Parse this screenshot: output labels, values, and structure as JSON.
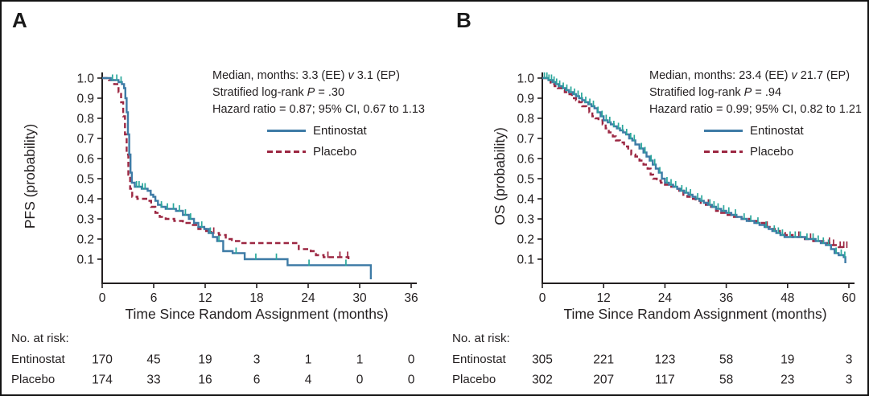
{
  "chart_data": [
    {
      "type": "line",
      "subtype": "kaplan_meier_step",
      "panel_label": "A",
      "xlabel": "Time Since Random Assignment (months)",
      "ylabel": "PFS (probability)",
      "xlim": [
        0,
        36
      ],
      "xticks": [
        0,
        6,
        12,
        18,
        24,
        30,
        36
      ],
      "ylim": [
        0,
        1.0
      ],
      "yticks": [
        0.1,
        0.2,
        0.3,
        0.4,
        0.5,
        0.6,
        0.7,
        0.8,
        0.9,
        1.0
      ],
      "grid": false,
      "legend_position": "upper right",
      "annotations": [
        "Median, months: 3.3 (EE) v 3.1 (EP)",
        "Stratified log-rank P = .30",
        "Hazard ratio = 0.87; 95% CI, 0.67 to 1.13"
      ],
      "ann": {
        "median_pre": "Median, months: 3.3 (EE)",
        "vs": "v",
        "median_post": "3.1 (EP)",
        "logrank_pre": "Stratified log-rank",
        "p": "P",
        "logrank_post": "= .30",
        "hazard": "Hazard ratio = 0.87; 95% CI, 0.67 to 1.13"
      },
      "series": [
        {
          "name": "Entinostat",
          "color": "#3e7ba6",
          "dash": "solid",
          "censor_color": "#2ba89c",
          "steps": [
            [
              0,
              1.0
            ],
            [
              1.0,
              0.99
            ],
            [
              1.9,
              0.98
            ],
            [
              2.3,
              0.97
            ],
            [
              2.55,
              0.95
            ],
            [
              2.7,
              0.9
            ],
            [
              2.85,
              0.83
            ],
            [
              3.0,
              0.72
            ],
            [
              3.15,
              0.62
            ],
            [
              3.3,
              0.53
            ],
            [
              3.45,
              0.48
            ],
            [
              3.8,
              0.46
            ],
            [
              4.6,
              0.45
            ],
            [
              5.3,
              0.44
            ],
            [
              5.65,
              0.42
            ],
            [
              5.95,
              0.41
            ],
            [
              6.2,
              0.39
            ],
            [
              6.5,
              0.37
            ],
            [
              6.9,
              0.36
            ],
            [
              7.4,
              0.35
            ],
            [
              8.6,
              0.34
            ],
            [
              9.4,
              0.32
            ],
            [
              10.1,
              0.3
            ],
            [
              10.7,
              0.28
            ],
            [
              11.2,
              0.26
            ],
            [
              11.9,
              0.25
            ],
            [
              12.4,
              0.23
            ],
            [
              12.9,
              0.21
            ],
            [
              13.4,
              0.19
            ],
            [
              14.1,
              0.14
            ],
            [
              15.2,
              0.13
            ],
            [
              16.6,
              0.1
            ],
            [
              21.6,
              0.07
            ],
            [
              31.3,
              0.07
            ],
            [
              31.3,
              0
            ]
          ],
          "censors_x": [
            1.2,
            1.7,
            2.2,
            4.0,
            4.3,
            4.7,
            5.0,
            6.9,
            7.6,
            8.3,
            9.0,
            9.7,
            10.3,
            11.6,
            12.6,
            13.6,
            15.6,
            17.9,
            20.3,
            24.1,
            28.4
          ]
        },
        {
          "name": "Placebo",
          "color": "#9c2742",
          "dash": "dashed",
          "censor_color": "#9c2742",
          "steps": [
            [
              0,
              1.0
            ],
            [
              0.8,
              0.99
            ],
            [
              1.4,
              0.97
            ],
            [
              1.9,
              0.93
            ],
            [
              2.2,
              0.88
            ],
            [
              2.45,
              0.81
            ],
            [
              2.65,
              0.72
            ],
            [
              2.85,
              0.62
            ],
            [
              3.05,
              0.52
            ],
            [
              3.25,
              0.45
            ],
            [
              3.5,
              0.41
            ],
            [
              4.1,
              0.4
            ],
            [
              5.3,
              0.39
            ],
            [
              5.7,
              0.36
            ],
            [
              6.2,
              0.33
            ],
            [
              6.7,
              0.31
            ],
            [
              7.4,
              0.3
            ],
            [
              8.4,
              0.29
            ],
            [
              9.4,
              0.28
            ],
            [
              10.4,
              0.27
            ],
            [
              11.2,
              0.25
            ],
            [
              12.1,
              0.24
            ],
            [
              12.7,
              0.23
            ],
            [
              13.6,
              0.22
            ],
            [
              14.4,
              0.2
            ],
            [
              15.1,
              0.19
            ],
            [
              16.2,
              0.18
            ],
            [
              22.9,
              0.15
            ],
            [
              24.3,
              0.14
            ],
            [
              24.9,
              0.12
            ],
            [
              25.8,
              0.11
            ],
            [
              28.7,
              0.1
            ]
          ],
          "censors_x": [
            13.0,
            26.3,
            27.7,
            28.6
          ]
        }
      ],
      "at_risk": {
        "title": "No. at risk:",
        "time_points": [
          0,
          6,
          12,
          18,
          24,
          30,
          36
        ],
        "rows": [
          {
            "label": "Entinostat",
            "values": [
              170,
              45,
              19,
              3,
              1,
              1,
              0
            ]
          },
          {
            "label": "Placebo",
            "values": [
              174,
              33,
              16,
              6,
              4,
              0,
              0
            ]
          }
        ]
      }
    },
    {
      "type": "line",
      "subtype": "kaplan_meier_step",
      "panel_label": "B",
      "xlabel": "Time Since Random Assignment (months)",
      "ylabel": "OS (probability)",
      "xlim": [
        0,
        60
      ],
      "xticks": [
        0,
        12,
        24,
        36,
        48,
        60
      ],
      "ylim": [
        0,
        1.0
      ],
      "yticks": [
        0.1,
        0.2,
        0.3,
        0.4,
        0.5,
        0.6,
        0.7,
        0.8,
        0.9,
        1.0
      ],
      "grid": false,
      "legend_position": "upper right",
      "annotations": [
        "Median, months: 23.4 (EE) v 21.7 (EP)",
        "Stratified log-rank P = .94",
        "Hazard ratio = 0.99; 95% CI, 0.82 to 1.21"
      ],
      "ann": {
        "median_pre": "Median, months: 23.4 (EE)",
        "vs": "v",
        "median_post": "21.7 (EP)",
        "logrank_pre": "Stratified log-rank",
        "p": "P",
        "logrank_post": "= .94",
        "hazard": "Hazard ratio = 0.99; 95% CI, 0.82 to 1.21"
      },
      "series": [
        {
          "name": "Entinostat",
          "color": "#3e7ba6",
          "dash": "solid",
          "censor_color": "#2ba89c",
          "steps": [
            [
              0,
              1.0
            ],
            [
              0.7,
              1.0
            ],
            [
              1.2,
              0.99
            ],
            [
              2.0,
              0.98
            ],
            [
              2.6,
              0.97
            ],
            [
              3.2,
              0.96
            ],
            [
              4.0,
              0.95
            ],
            [
              4.6,
              0.94
            ],
            [
              5.2,
              0.93
            ],
            [
              6.0,
              0.92
            ],
            [
              6.6,
              0.91
            ],
            [
              7.2,
              0.9
            ],
            [
              7.8,
              0.89
            ],
            [
              8.4,
              0.88
            ],
            [
              9.0,
              0.87
            ],
            [
              9.6,
              0.86
            ],
            [
              10.2,
              0.85
            ],
            [
              10.8,
              0.83
            ],
            [
              11.4,
              0.81
            ],
            [
              12.0,
              0.79
            ],
            [
              12.8,
              0.78
            ],
            [
              13.4,
              0.77
            ],
            [
              14.0,
              0.76
            ],
            [
              14.6,
              0.75
            ],
            [
              15.2,
              0.74
            ],
            [
              15.8,
              0.73
            ],
            [
              16.4,
              0.72
            ],
            [
              17.0,
              0.7
            ],
            [
              17.6,
              0.69
            ],
            [
              18.2,
              0.67
            ],
            [
              19.0,
              0.65
            ],
            [
              19.8,
              0.63
            ],
            [
              20.4,
              0.61
            ],
            [
              21.0,
              0.59
            ],
            [
              21.6,
              0.57
            ],
            [
              22.2,
              0.55
            ],
            [
              22.8,
              0.53
            ],
            [
              23.4,
              0.5
            ],
            [
              24.0,
              0.48
            ],
            [
              24.8,
              0.47
            ],
            [
              25.6,
              0.46
            ],
            [
              26.4,
              0.45
            ],
            [
              27.0,
              0.44
            ],
            [
              27.8,
              0.43
            ],
            [
              28.6,
              0.42
            ],
            [
              29.4,
              0.41
            ],
            [
              30.0,
              0.4
            ],
            [
              30.8,
              0.39
            ],
            [
              31.6,
              0.38
            ],
            [
              32.4,
              0.37
            ],
            [
              33.2,
              0.36
            ],
            [
              34.0,
              0.35
            ],
            [
              35.0,
              0.34
            ],
            [
              36.0,
              0.33
            ],
            [
              37.0,
              0.32
            ],
            [
              38.0,
              0.31
            ],
            [
              39.0,
              0.3
            ],
            [
              40.0,
              0.29
            ],
            [
              41.5,
              0.28
            ],
            [
              42.5,
              0.27
            ],
            [
              43.5,
              0.26
            ],
            [
              44.3,
              0.25
            ],
            [
              45.0,
              0.24
            ],
            [
              45.8,
              0.23
            ],
            [
              46.6,
              0.22
            ],
            [
              47.4,
              0.21
            ],
            [
              51.5,
              0.2
            ],
            [
              53.5,
              0.19
            ],
            [
              54.5,
              0.18
            ],
            [
              55.5,
              0.17
            ],
            [
              56.5,
              0.15
            ],
            [
              57.2,
              0.13
            ],
            [
              58.0,
              0.12
            ],
            [
              59.0,
              0.11
            ],
            [
              59.3,
              0.08
            ]
          ],
          "censors_x": [
            0.4,
            0.9,
            1.3,
            1.8,
            2.3,
            2.8,
            3.4,
            4.1,
            4.8,
            5.6,
            6.3,
            7.0,
            7.7,
            8.5,
            9.3,
            10.0,
            10.9,
            11.7,
            12.5,
            13.2,
            14.0,
            14.9,
            15.7,
            16.5,
            17.3,
            18.0,
            19.4,
            20.1,
            21.3,
            22.0,
            23.0,
            24.4,
            25.2,
            26.1,
            27.3,
            28.2,
            29.0,
            30.4,
            31.2,
            32.8,
            33.6,
            34.4,
            35.5,
            36.5,
            37.8,
            39.5,
            40.8,
            42.2,
            43.8,
            45.4,
            46.2,
            47.0,
            48.5,
            49.5,
            50.5,
            51.8,
            53.0,
            54.0,
            55.0,
            56.0,
            57.5,
            58.5,
            59.2
          ]
        },
        {
          "name": "Placebo",
          "color": "#9c2742",
          "dash": "dashed",
          "censor_color": "#9c2742",
          "steps": [
            [
              0,
              1.0
            ],
            [
              0.8,
              0.99
            ],
            [
              1.6,
              0.97
            ],
            [
              2.4,
              0.96
            ],
            [
              3.0,
              0.95
            ],
            [
              3.8,
              0.94
            ],
            [
              4.4,
              0.93
            ],
            [
              5.0,
              0.92
            ],
            [
              5.8,
              0.9
            ],
            [
              6.6,
              0.89
            ],
            [
              7.2,
              0.88
            ],
            [
              7.8,
              0.86
            ],
            [
              8.6,
              0.85
            ],
            [
              9.2,
              0.83
            ],
            [
              9.8,
              0.81
            ],
            [
              10.4,
              0.8
            ],
            [
              11.0,
              0.79
            ],
            [
              11.8,
              0.77
            ],
            [
              12.4,
              0.75
            ],
            [
              13.0,
              0.73
            ],
            [
              13.8,
              0.71
            ],
            [
              14.4,
              0.69
            ],
            [
              15.2,
              0.68
            ],
            [
              16.0,
              0.66
            ],
            [
              16.8,
              0.64
            ],
            [
              17.4,
              0.62
            ],
            [
              18.2,
              0.61
            ],
            [
              19.0,
              0.59
            ],
            [
              19.8,
              0.57
            ],
            [
              20.6,
              0.55
            ],
            [
              21.2,
              0.52
            ],
            [
              21.7,
              0.5
            ],
            [
              22.4,
              0.49
            ],
            [
              23.2,
              0.48
            ],
            [
              24.0,
              0.47
            ],
            [
              25.0,
              0.46
            ],
            [
              26.0,
              0.45
            ],
            [
              26.8,
              0.44
            ],
            [
              27.6,
              0.42
            ],
            [
              28.4,
              0.41
            ],
            [
              29.2,
              0.4
            ],
            [
              30.0,
              0.39
            ],
            [
              31.0,
              0.38
            ],
            [
              32.0,
              0.37
            ],
            [
              33.0,
              0.36
            ],
            [
              34.0,
              0.34
            ],
            [
              35.0,
              0.33
            ],
            [
              36.0,
              0.32
            ],
            [
              37.5,
              0.31
            ],
            [
              39.0,
              0.3
            ],
            [
              40.5,
              0.29
            ],
            [
              42.0,
              0.28
            ],
            [
              43.5,
              0.26
            ],
            [
              44.5,
              0.25
            ],
            [
              45.5,
              0.24
            ],
            [
              46.5,
              0.23
            ],
            [
              47.5,
              0.22
            ],
            [
              49.0,
              0.21
            ],
            [
              51.0,
              0.2
            ],
            [
              53.0,
              0.19
            ],
            [
              55.0,
              0.18
            ],
            [
              56.5,
              0.17
            ],
            [
              58.0,
              0.16
            ],
            [
              59.5,
              0.16
            ]
          ],
          "censors_x": [
            32.5,
            44.0,
            50.2,
            52.5,
            56.2,
            57.0,
            58.3,
            59.0,
            59.6
          ]
        }
      ],
      "at_risk": {
        "title": "No. at risk:",
        "time_points": [
          0,
          12,
          24,
          36,
          48,
          60
        ],
        "rows": [
          {
            "label": "Entinostat",
            "values": [
              305,
              221,
              123,
              58,
              19,
              3
            ]
          },
          {
            "label": "Placebo",
            "values": [
              302,
              207,
              117,
              58,
              23,
              3
            ]
          }
        ]
      }
    }
  ]
}
